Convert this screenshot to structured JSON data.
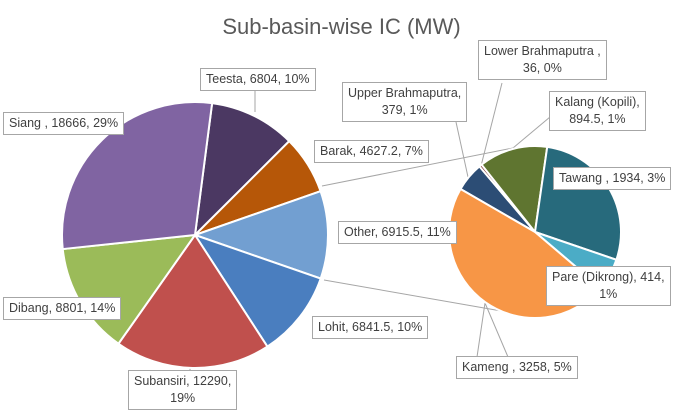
{
  "chart_data": {
    "type": "pie",
    "subtype": "pie-of-pie",
    "title": "Sub-basin-wise IC (MW)",
    "primary": {
      "slices": [
        {
          "name": "Teesta",
          "value": 6804,
          "pct": "10%",
          "label": "Teesta, 6804, 10%",
          "color": "#4b3862"
        },
        {
          "name": "Barak",
          "value": 4627.2,
          "pct": "7%",
          "label": "Barak, 4627.2, 7%",
          "color": "#b65708"
        },
        {
          "name": "Other",
          "value": 6915.5,
          "pct": "11%",
          "label": "Other, 6915.5, 11%",
          "color": "#729fd1"
        },
        {
          "name": "Lohit",
          "value": 6841.5,
          "pct": "10%",
          "label": "Lohit, 6841.5, 10%",
          "color": "#4a7ebf"
        },
        {
          "name": "Subansiri",
          "value": 12290,
          "pct": "19%",
          "label": "Subansiri, 12290, 19%",
          "color": "#c0504d"
        },
        {
          "name": "Dibang",
          "value": 8801,
          "pct": "14%",
          "label": "Dibang, 8801, 14%",
          "color": "#9bbb59"
        },
        {
          "name": "Siang",
          "value": 18666,
          "pct": "29%",
          "label": "Siang , 18666, 29%",
          "color": "#8064a2"
        }
      ]
    },
    "secondary": {
      "of": "Other",
      "slices": [
        {
          "name": "Upper Brahmaputra",
          "value": 379,
          "pct": "1%",
          "label": "Upper Brahmaputra, 379, 1%",
          "color": "#2c4d75"
        },
        {
          "name": "Lower Brahmaputra",
          "value": 36,
          "pct": "0%",
          "label": "Lower Brahmaputra , 36, 0%",
          "color": "#772c2a"
        },
        {
          "name": "Kalang (Kopili)",
          "value": 894.5,
          "pct": "1%",
          "label": "Kalang (Kopili), 894.5, 1%",
          "color": "#5f7530"
        },
        {
          "name": "Tawang",
          "value": 1934,
          "pct": "3%",
          "label": "Tawang , 1934, 3%",
          "color": "#276a7c"
        },
        {
          "name": "Pare (Dikrong)",
          "value": 414,
          "pct": "1%",
          "label": "Pare (Dikrong), 414, 1%",
          "color": "#4bacc6"
        },
        {
          "name": "Kameng",
          "value": 3258,
          "pct": "5%",
          "label": "Kameng , 3258, 5%",
          "color": "#f79646"
        }
      ]
    },
    "labels": {
      "teesta": "Teesta, 6804, 10%",
      "siang": "Siang , 18666, 29%",
      "barak": "Barak, 4627.2, 7%",
      "other": "Other, 6915.5, 11%",
      "lohit": "Lohit, 6841.5, 10%",
      "dibang": "Dibang, 8801, 14%",
      "subansiri_1": "Subansiri, 12290,",
      "subansiri_2": "19%",
      "upper_1": "Upper Brahmaputra,",
      "upper_2": "379, 1%",
      "lower_1": "Lower Brahmaputra ,",
      "lower_2": "36, 0%",
      "kalang_1": "Kalang (Kopili),",
      "kalang_2": "894.5, 1%",
      "tawang": "Tawang , 1934, 3%",
      "pare_1": "Pare (Dikrong), 414,",
      "pare_2": "1%",
      "kameng": "Kameng , 3258, 5%"
    }
  }
}
